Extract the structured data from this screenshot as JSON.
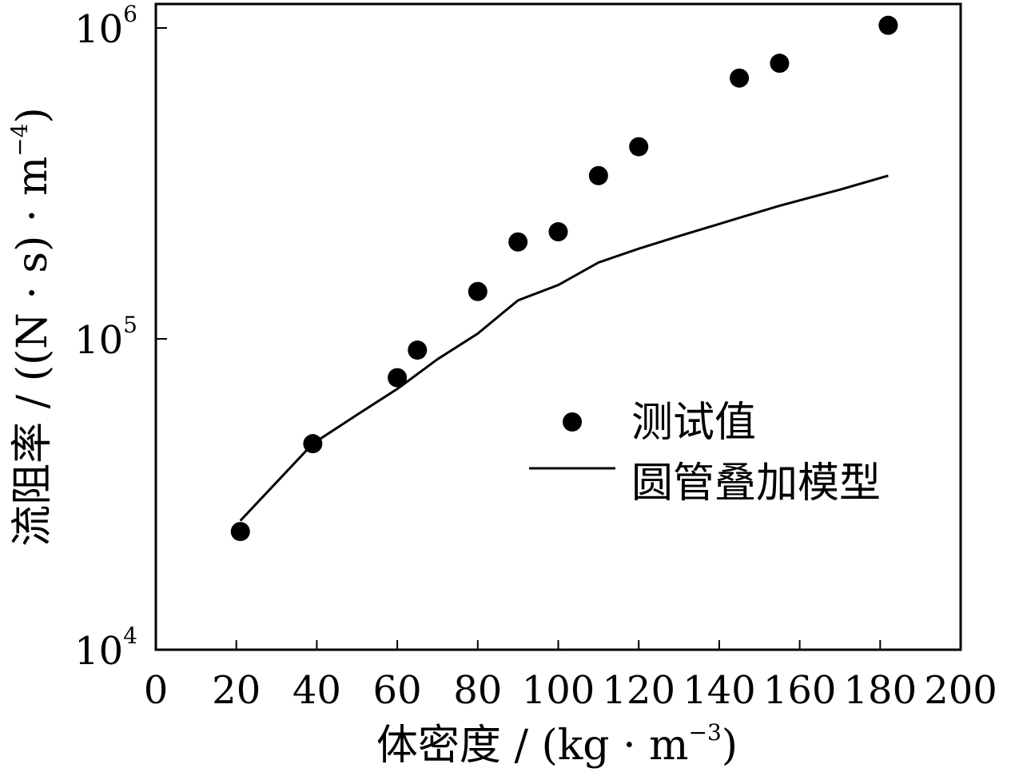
{
  "chart_data": {
    "type": "scatter",
    "xlabel": "体密度 / (kg · m",
    "xlabel_sup": "−3",
    "xlabel_close": ")",
    "ylabel": "流阻率 / ((N · s) · m",
    "ylabel_sup": "−4",
    "ylabel_close": ")",
    "xlim": [
      0,
      200
    ],
    "ylim": [
      10000,
      1000000
    ],
    "y_scale": "log",
    "grid": false,
    "legend_position": "right",
    "x_ticks": [
      "0",
      "20",
      "40",
      "60",
      "80",
      "100",
      "120",
      "140",
      "160",
      "180",
      "200"
    ],
    "y_ticks": [
      {
        "base": "10",
        "exp": "4",
        "value": 10000
      },
      {
        "base": "10",
        "exp": "5",
        "value": 100000
      },
      {
        "base": "10",
        "exp": "6",
        "value": 1000000
      }
    ],
    "series": [
      {
        "name": "测试值",
        "kind": "points",
        "color": "#000000",
        "x": [
          21,
          39,
          60,
          65,
          80,
          90,
          100,
          110,
          120,
          145,
          155,
          182
        ],
        "y": [
          24000,
          46000,
          75000,
          92000,
          142000,
          205000,
          221000,
          335000,
          415000,
          690000,
          770000,
          1020000
        ]
      },
      {
        "name": "圆管叠加模型",
        "kind": "line",
        "color": "#000000",
        "x": [
          21,
          39,
          50,
          60,
          70,
          80,
          90,
          100,
          110,
          120,
          130,
          145,
          155,
          170,
          182
        ],
        "y": [
          26000,
          46000,
          57000,
          69000,
          86000,
          104000,
          133000,
          149000,
          176000,
          195000,
          214000,
          245000,
          268000,
          302000,
          335000
        ]
      }
    ]
  }
}
